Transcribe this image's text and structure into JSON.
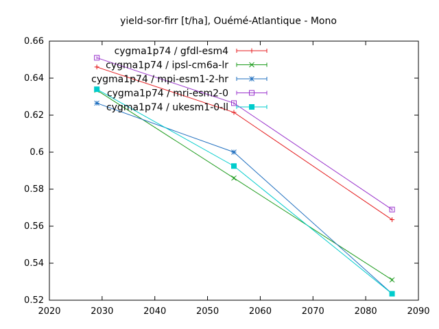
{
  "chart_data": {
    "type": "line",
    "title": "yield-sor-firr [t/ha], Ouémé-Atlantique - Mono",
    "xlabel": "",
    "ylabel": "",
    "xlim": [
      2020,
      2090
    ],
    "ylim": [
      0.52,
      0.66
    ],
    "xticks": [
      2020,
      2030,
      2040,
      2050,
      2060,
      2070,
      2080,
      2090
    ],
    "yticks": [
      0.52,
      0.54,
      0.56,
      0.58,
      0.6,
      0.62,
      0.64,
      0.66
    ],
    "ytick_labels": [
      "0.52",
      "0.54",
      "0.56",
      "0.58",
      "0.6",
      "0.62",
      "0.64",
      "0.66"
    ],
    "grid": false,
    "legend_position": "top-left",
    "series": [
      {
        "name": "cygma1p74 / gfdl-esm4",
        "color": "#e41a1c",
        "marker": "plus",
        "x": [
          2029,
          2055,
          2085
        ],
        "y": [
          0.646,
          0.6215,
          0.5635
        ]
      },
      {
        "name": "cygma1p74 / ipsl-cm6a-lr",
        "color": "#1a9a1a",
        "marker": "cross",
        "x": [
          2029,
          2055,
          2085
        ],
        "y": [
          0.6335,
          0.586,
          0.531
        ]
      },
      {
        "name": "cygma1p74 / mpi-esm1-2-hr",
        "color": "#1f6fbf",
        "marker": "star",
        "x": [
          2029,
          2055,
          2085
        ],
        "y": [
          0.6265,
          0.6,
          0.5235
        ]
      },
      {
        "name": "cygma1p74 / mri-esm2-0",
        "color": "#9933cc",
        "marker": "square-open",
        "x": [
          2029,
          2055,
          2085
        ],
        "y": [
          0.651,
          0.6265,
          0.569
        ]
      },
      {
        "name": "cygma1p74 / ukesm1-0-ll",
        "color": "#00cccc",
        "marker": "square-filled",
        "x": [
          2029,
          2055,
          2085
        ],
        "y": [
          0.634,
          0.5925,
          0.5235
        ]
      }
    ]
  }
}
